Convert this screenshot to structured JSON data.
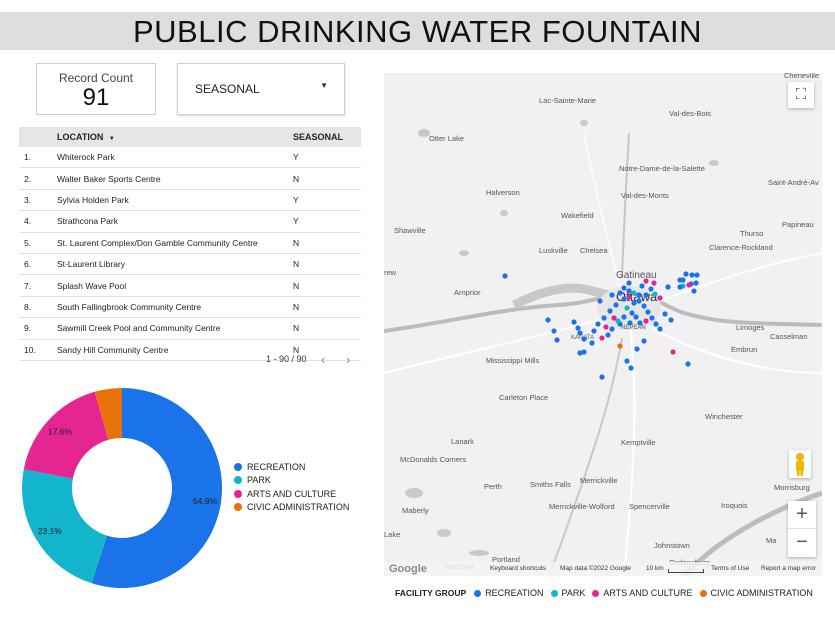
{
  "title": "PUBLIC DRINKING WATER FOUNTAIN",
  "record_count": {
    "label": "Record Count",
    "value": "91"
  },
  "filter": {
    "label": "SEASONAL"
  },
  "table": {
    "headers": {
      "location": "LOCATION",
      "seasonal": "SEASONAL"
    },
    "rows": [
      {
        "num": "1.",
        "location": "Whiterock Park",
        "seasonal": "Y"
      },
      {
        "num": "2.",
        "location": "Walter Baker Sports Centre",
        "seasonal": "N"
      },
      {
        "num": "3.",
        "location": "Sylvia Holden Park",
        "seasonal": "Y"
      },
      {
        "num": "4.",
        "location": "Strathcona Park",
        "seasonal": "Y"
      },
      {
        "num": "5.",
        "location": "St. Laurent Complex/Don Gamble Community Centre",
        "seasonal": "N"
      },
      {
        "num": "6.",
        "location": "St-Laurent Library",
        "seasonal": "N"
      },
      {
        "num": "7.",
        "location": "Splash Wave Pool",
        "seasonal": "N"
      },
      {
        "num": "8.",
        "location": "South Fallingbrook Community Centre",
        "seasonal": "N"
      },
      {
        "num": "9.",
        "location": "Sawmill Creek Pool and Community Centre",
        "seasonal": "N"
      },
      {
        "num": "10.",
        "location": "Sandy Hill Community Centre",
        "seasonal": "N"
      }
    ],
    "pagination": "1 - 90 / 90"
  },
  "chart_data": {
    "type": "pie",
    "categories": [
      "RECREATION",
      "PARK",
      "ARTS AND CULTURE",
      "CIVIC ADMINISTRATION"
    ],
    "values": [
      54.9,
      23.1,
      17.6,
      4.4
    ],
    "labels": [
      "54.9%",
      "23.1%",
      "17.6%",
      ""
    ],
    "colors": [
      "#1a73e8",
      "#12b5cb",
      "#e52592",
      "#e8710a"
    ],
    "legend": "right"
  },
  "map": {
    "places": [
      "Lac-Sainte-Marie",
      "Val-des-Bois",
      "Otter Lake",
      "Notre-Dame-de-la-Salette",
      "Val-des-Monts",
      "Halverson",
      "Wakefield",
      "Shawville",
      "Luskville",
      "Chelsea",
      "Thurso",
      "Clarence-Rockland",
      "Gatineau",
      "Ottawa",
      "Arnprior",
      "NEPEAN",
      "KANATA",
      "Limoges",
      "Casselman",
      "Embrun",
      "Mississippi Mills",
      "Carleton Place",
      "Winchester",
      "Lanark",
      "Kemptville",
      "McDonalds Corners",
      "Perth",
      "Smiths Falls",
      "Merrickville",
      "Morrisburg",
      "Maberly",
      "Merrickville-Wolford",
      "Spencerville",
      "Iroquois",
      "Portland",
      "Westport",
      "Oxdensburg",
      "Johnstown",
      "Saint-André-Av",
      "Papineau",
      "Cheneville",
      "Lake",
      "rew",
      "Ma"
    ],
    "attribution": {
      "google": "Google",
      "shortcuts": "Keyboard shortcuts",
      "data": "Map data ©2022 Google",
      "scale": "10 km",
      "terms": "Terms of Use",
      "report": "Report a map error"
    },
    "legend_title": "FACILITY GROUP",
    "legend": [
      "RECREATION",
      "PARK",
      "ARTS AND CULTURE",
      "CIVIC ADMINISTRATION"
    ],
    "zoom_in": "+",
    "zoom_out": "−"
  }
}
